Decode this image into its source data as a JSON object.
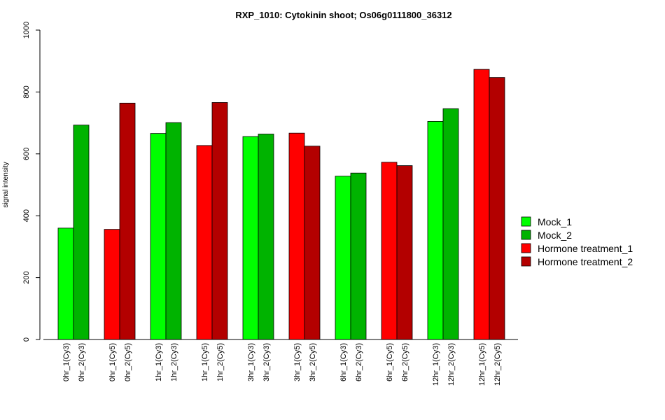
{
  "chart_data": {
    "type": "bar",
    "title": "RXP_1010: Cytokinin shoot; Os06g0111800_36312",
    "ylabel": "signal intensity",
    "xlabel": "",
    "ylim": [
      0,
      1000
    ],
    "yticks": [
      0,
      200,
      400,
      600,
      800,
      1000
    ],
    "legend_position": "right",
    "series": [
      {
        "name": "Mock_1",
        "color": "#00ff00"
      },
      {
        "name": "Mock_2",
        "color": "#00b300"
      },
      {
        "name": "Hormone treatment_1",
        "color": "#ff0000"
      },
      {
        "name": "Hormone treatment_2",
        "color": "#b30000"
      }
    ],
    "groups": [
      {
        "bars": [
          {
            "label": "0hr_1(Cy3)",
            "value": 360,
            "series": 0
          },
          {
            "label": "0hr_2(Cy3)",
            "value": 693,
            "series": 1
          }
        ]
      },
      {
        "bars": [
          {
            "label": "0hr_1(Cy5)",
            "value": 356,
            "series": 2
          },
          {
            "label": "0hr_2(Cy5)",
            "value": 764,
            "series": 3
          }
        ]
      },
      {
        "bars": [
          {
            "label": "1hr_1(Cy3)",
            "value": 666,
            "series": 0
          },
          {
            "label": "1hr_2(Cy3)",
            "value": 701,
            "series": 1
          }
        ]
      },
      {
        "bars": [
          {
            "label": "1hr_1(Cy5)",
            "value": 627,
            "series": 2
          },
          {
            "label": "1hr_2(Cy5)",
            "value": 766,
            "series": 3
          }
        ]
      },
      {
        "bars": [
          {
            "label": "3hr_1(Cy3)",
            "value": 656,
            "series": 0
          },
          {
            "label": "3hr_2(Cy3)",
            "value": 664,
            "series": 1
          }
        ]
      },
      {
        "bars": [
          {
            "label": "3hr_1(Cy5)",
            "value": 667,
            "series": 2
          },
          {
            "label": "3hr_2(Cy5)",
            "value": 625,
            "series": 3
          }
        ]
      },
      {
        "bars": [
          {
            "label": "6hr_1(Cy3)",
            "value": 528,
            "series": 0
          },
          {
            "label": "6hr_2(Cy3)",
            "value": 538,
            "series": 1
          }
        ]
      },
      {
        "bars": [
          {
            "label": "6hr_1(Cy5)",
            "value": 573,
            "series": 2
          },
          {
            "label": "6hr_2(Cy5)",
            "value": 562,
            "series": 3
          }
        ]
      },
      {
        "bars": [
          {
            "label": "12hr_1(Cy3)",
            "value": 705,
            "series": 0
          },
          {
            "label": "12hr_2(Cy3)",
            "value": 746,
            "series": 1
          }
        ]
      },
      {
        "bars": [
          {
            "label": "12hr_1(Cy5)",
            "value": 873,
            "series": 2
          },
          {
            "label": "12hr_2(Cy5)",
            "value": 847,
            "series": 3
          }
        ]
      }
    ]
  }
}
